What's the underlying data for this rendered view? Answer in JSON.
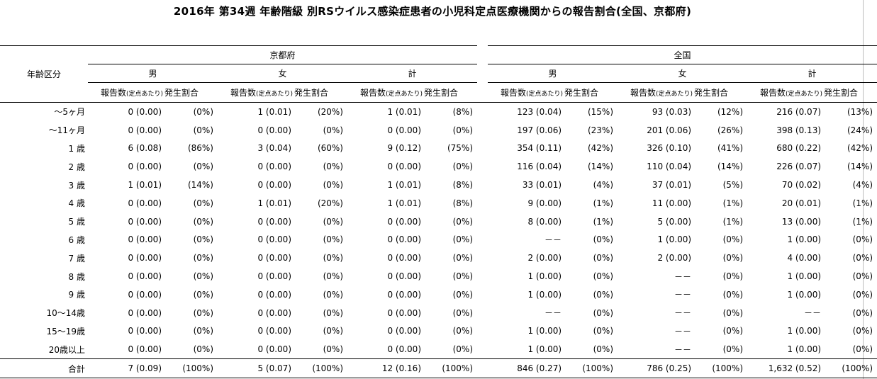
{
  "title": "2016年 第34週 年齢階級 別RSウイルス感染症患者の小児科定点医療機関からの報告割合(全国、京都府)",
  "header": {
    "age_label": "年齢区分",
    "regions": [
      "京都府",
      "全国"
    ],
    "sexes": [
      "男",
      "女",
      "計"
    ],
    "sub": {
      "count": "報告数",
      "per": "(定点あたり)",
      "rate": "発生割合"
    }
  },
  "rows": [
    {
      "age": "～5ヶ月",
      "kyoto": [
        [
          "0 (0.00)",
          "(0%)"
        ],
        [
          "1 (0.01)",
          "(20%)"
        ],
        [
          "1 (0.01)",
          "(8%)"
        ]
      ],
      "national": [
        [
          "123 (0.04)",
          "(15%)"
        ],
        [
          "93 (0.03)",
          "(12%)"
        ],
        [
          "216 (0.07)",
          "(13%)"
        ]
      ]
    },
    {
      "age": "～11ヶ月",
      "kyoto": [
        [
          "0 (0.00)",
          "(0%)"
        ],
        [
          "0 (0.00)",
          "(0%)"
        ],
        [
          "0 (0.00)",
          "(0%)"
        ]
      ],
      "national": [
        [
          "197 (0.06)",
          "(23%)"
        ],
        [
          "201 (0.06)",
          "(26%)"
        ],
        [
          "398 (0.13)",
          "(24%)"
        ]
      ]
    },
    {
      "age": "1 歳",
      "kyoto": [
        [
          "6 (0.08)",
          "(86%)"
        ],
        [
          "3 (0.04)",
          "(60%)"
        ],
        [
          "9 (0.12)",
          "(75%)"
        ]
      ],
      "national": [
        [
          "354 (0.11)",
          "(42%)"
        ],
        [
          "326 (0.10)",
          "(41%)"
        ],
        [
          "680 (0.22)",
          "(42%)"
        ]
      ]
    },
    {
      "age": "2 歳",
      "kyoto": [
        [
          "0 (0.00)",
          "(0%)"
        ],
        [
          "0 (0.00)",
          "(0%)"
        ],
        [
          "0 (0.00)",
          "(0%)"
        ]
      ],
      "national": [
        [
          "116 (0.04)",
          "(14%)"
        ],
        [
          "110 (0.04)",
          "(14%)"
        ],
        [
          "226 (0.07)",
          "(14%)"
        ]
      ]
    },
    {
      "age": "3 歳",
      "kyoto": [
        [
          "1 (0.01)",
          "(14%)"
        ],
        [
          "0 (0.00)",
          "(0%)"
        ],
        [
          "1 (0.01)",
          "(8%)"
        ]
      ],
      "national": [
        [
          "33 (0.01)",
          "(4%)"
        ],
        [
          "37 (0.01)",
          "(5%)"
        ],
        [
          "70 (0.02)",
          "(4%)"
        ]
      ]
    },
    {
      "age": "4 歳",
      "kyoto": [
        [
          "0 (0.00)",
          "(0%)"
        ],
        [
          "1 (0.01)",
          "(20%)"
        ],
        [
          "1 (0.01)",
          "(8%)"
        ]
      ],
      "national": [
        [
          "9 (0.00)",
          "(1%)"
        ],
        [
          "11 (0.00)",
          "(1%)"
        ],
        [
          "20 (0.01)",
          "(1%)"
        ]
      ]
    },
    {
      "age": "5 歳",
      "kyoto": [
        [
          "0 (0.00)",
          "(0%)"
        ],
        [
          "0 (0.00)",
          "(0%)"
        ],
        [
          "0 (0.00)",
          "(0%)"
        ]
      ],
      "national": [
        [
          "8 (0.00)",
          "(1%)"
        ],
        [
          "5 (0.00)",
          "(1%)"
        ],
        [
          "13 (0.00)",
          "(1%)"
        ]
      ]
    },
    {
      "age": "6 歳",
      "kyoto": [
        [
          "0 (0.00)",
          "(0%)"
        ],
        [
          "0 (0.00)",
          "(0%)"
        ],
        [
          "0 (0.00)",
          "(0%)"
        ]
      ],
      "national": [
        [
          "－－",
          "(0%)"
        ],
        [
          "1 (0.00)",
          "(0%)"
        ],
        [
          "1 (0.00)",
          "(0%)"
        ]
      ]
    },
    {
      "age": "7 歳",
      "kyoto": [
        [
          "0 (0.00)",
          "(0%)"
        ],
        [
          "0 (0.00)",
          "(0%)"
        ],
        [
          "0 (0.00)",
          "(0%)"
        ]
      ],
      "national": [
        [
          "2 (0.00)",
          "(0%)"
        ],
        [
          "2 (0.00)",
          "(0%)"
        ],
        [
          "4 (0.00)",
          "(0%)"
        ]
      ]
    },
    {
      "age": "8 歳",
      "kyoto": [
        [
          "0 (0.00)",
          "(0%)"
        ],
        [
          "0 (0.00)",
          "(0%)"
        ],
        [
          "0 (0.00)",
          "(0%)"
        ]
      ],
      "national": [
        [
          "1 (0.00)",
          "(0%)"
        ],
        [
          "－－",
          "(0%)"
        ],
        [
          "1 (0.00)",
          "(0%)"
        ]
      ]
    },
    {
      "age": "9 歳",
      "kyoto": [
        [
          "0 (0.00)",
          "(0%)"
        ],
        [
          "0 (0.00)",
          "(0%)"
        ],
        [
          "0 (0.00)",
          "(0%)"
        ]
      ],
      "national": [
        [
          "1 (0.00)",
          "(0%)"
        ],
        [
          "－－",
          "(0%)"
        ],
        [
          "1 (0.00)",
          "(0%)"
        ]
      ]
    },
    {
      "age": "10～14歳",
      "kyoto": [
        [
          "0 (0.00)",
          "(0%)"
        ],
        [
          "0 (0.00)",
          "(0%)"
        ],
        [
          "0 (0.00)",
          "(0%)"
        ]
      ],
      "national": [
        [
          "－－",
          "(0%)"
        ],
        [
          "－－",
          "(0%)"
        ],
        [
          "－－",
          "(0%)"
        ]
      ]
    },
    {
      "age": "15～19歳",
      "kyoto": [
        [
          "0 (0.00)",
          "(0%)"
        ],
        [
          "0 (0.00)",
          "(0%)"
        ],
        [
          "0 (0.00)",
          "(0%)"
        ]
      ],
      "national": [
        [
          "1 (0.00)",
          "(0%)"
        ],
        [
          "－－",
          "(0%)"
        ],
        [
          "1 (0.00)",
          "(0%)"
        ]
      ]
    },
    {
      "age": "20歳以上",
      "kyoto": [
        [
          "0 (0.00)",
          "(0%)"
        ],
        [
          "0 (0.00)",
          "(0%)"
        ],
        [
          "0 (0.00)",
          "(0%)"
        ]
      ],
      "national": [
        [
          "1 (0.00)",
          "(0%)"
        ],
        [
          "－－",
          "(0%)"
        ],
        [
          "1 (0.00)",
          "(0%)"
        ]
      ]
    }
  ],
  "total": {
    "age": "合計",
    "kyoto": [
      [
        "7 (0.09)",
        "(100%)"
      ],
      [
        "5 (0.07)",
        "(100%)"
      ],
      [
        "12 (0.16)",
        "(100%)"
      ]
    ],
    "national": [
      [
        "846 (0.27)",
        "(100%)"
      ],
      [
        "786 (0.25)",
        "(100%)"
      ],
      [
        "1,632 (0.52)",
        "(100%)"
      ]
    ]
  }
}
